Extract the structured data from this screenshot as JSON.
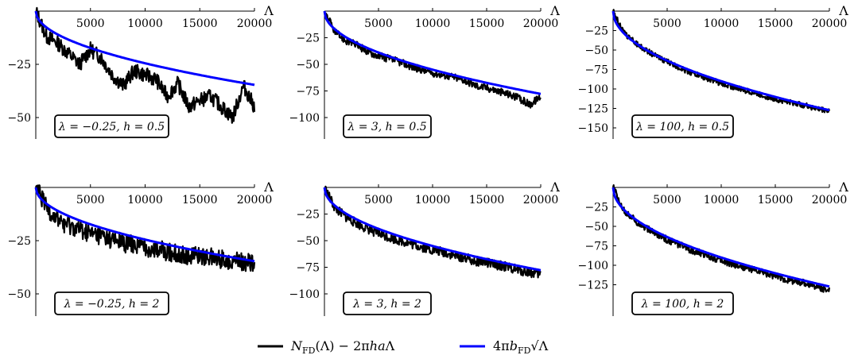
{
  "chart_data": [
    {
      "type": "line",
      "title": "",
      "xlabel": "Λ",
      "ylabel": "",
      "xlim": [
        0,
        20000
      ],
      "ylim": [
        -65,
        0
      ],
      "xticks": [
        {
          "v": 5000,
          "t": "5000"
        },
        {
          "v": 10000,
          "t": "10000"
        },
        {
          "v": 15000,
          "t": "15000"
        },
        {
          "v": 20000,
          "t": "20000"
        }
      ],
      "yticks": [
        {
          "v": -25,
          "t": "−25"
        },
        {
          "v": -50,
          "t": "−50"
        }
      ],
      "annotation": {
        "lambda": "λ = −0.25,",
        "h": "h = 0.5"
      },
      "series": [
        {
          "key": "nfd",
          "x": [
            0,
            1000,
            2000,
            3000,
            4000,
            5000,
            6000,
            7000,
            8000,
            9000,
            10000,
            11000,
            12000,
            13000,
            14000,
            15000,
            16000,
            17000,
            18000,
            19000,
            20000
          ],
          "y": [
            0,
            -12,
            -15,
            -20,
            -25,
            -18,
            -22,
            -30,
            -35,
            -28,
            -30,
            -32,
            -40,
            -34,
            -45,
            -42,
            -40,
            -45,
            -50,
            -35,
            -45
          ]
        },
        {
          "key": "fit",
          "coef": -0.245
        }
      ]
    },
    {
      "type": "line",
      "title": "",
      "xlabel": "Λ",
      "ylabel": "",
      "xlim": [
        0,
        20000
      ],
      "ylim": [
        -110,
        0
      ],
      "xticks": [
        {
          "v": 5000,
          "t": "5000"
        },
        {
          "v": 10000,
          "t": "10000"
        },
        {
          "v": 15000,
          "t": "15000"
        },
        {
          "v": 20000,
          "t": "20000"
        }
      ],
      "yticks": [
        {
          "v": -25,
          "t": "−25"
        },
        {
          "v": -50,
          "t": "−50"
        },
        {
          "v": -75,
          "t": "−75"
        },
        {
          "v": -100,
          "t": "−100"
        }
      ],
      "annotation": {
        "lambda": "λ = 3,",
        "h": "h = 0.5"
      },
      "series": [
        {
          "key": "nfd",
          "x": [
            0,
            1000,
            2000,
            3000,
            4000,
            5000,
            6000,
            7000,
            8000,
            9000,
            10000,
            11000,
            12000,
            13000,
            14000,
            15000,
            16000,
            17000,
            18000,
            19000,
            20000
          ],
          "y": [
            0,
            -20,
            -28,
            -32,
            -38,
            -42,
            -45,
            -48,
            -52,
            -55,
            -58,
            -60,
            -62,
            -65,
            -70,
            -72,
            -75,
            -78,
            -82,
            -88,
            -80
          ]
        },
        {
          "key": "fit",
          "coef": -0.55
        }
      ]
    },
    {
      "type": "line",
      "title": "",
      "xlabel": "Λ",
      "ylabel": "",
      "xlim": [
        0,
        20000
      ],
      "ylim": [
        -150,
        0
      ],
      "xticks": [
        {
          "v": 5000,
          "t": "5000"
        },
        {
          "v": 10000,
          "t": "10000"
        },
        {
          "v": 15000,
          "t": "15000"
        },
        {
          "v": 20000,
          "t": "20000"
        }
      ],
      "yticks": [
        {
          "v": -25,
          "t": "−25"
        },
        {
          "v": -50,
          "t": "−50"
        },
        {
          "v": -75,
          "t": "−75"
        },
        {
          "v": -100,
          "t": "−100"
        },
        {
          "v": -125,
          "t": "−125"
        },
        {
          "v": -150,
          "t": "−150"
        }
      ],
      "annotation": {
        "lambda": "λ = 100,",
        "h": "h = 0.5"
      },
      "series": [
        {
          "key": "nfd",
          "x": [
            0,
            1000,
            2000,
            3000,
            4000,
            5000,
            6000,
            7000,
            8000,
            9000,
            10000,
            11000,
            12000,
            13000,
            14000,
            15000,
            16000,
            17000,
            18000,
            19000,
            20000
          ],
          "y": [
            0,
            -28,
            -40,
            -50,
            -58,
            -65,
            -72,
            -78,
            -83,
            -88,
            -93,
            -97,
            -101,
            -105,
            -109,
            -113,
            -116,
            -119,
            -122,
            -126,
            -128
          ]
        },
        {
          "key": "fit",
          "coef": -0.9
        }
      ]
    },
    {
      "type": "line",
      "title": "",
      "xlabel": "Λ",
      "ylabel": "",
      "xlim": [
        0,
        20000
      ],
      "ylim": [
        -65,
        0
      ],
      "xticks": [
        {
          "v": 5000,
          "t": "5000"
        },
        {
          "v": 10000,
          "t": "10000"
        },
        {
          "v": 15000,
          "t": "15000"
        },
        {
          "v": 20000,
          "t": "20000"
        }
      ],
      "yticks": [
        {
          "v": -25,
          "t": "−25"
        },
        {
          "v": -50,
          "t": "−50"
        }
      ],
      "annotation": {
        "lambda": "λ = −0.25,",
        "h": "h = 2"
      },
      "series": [
        {
          "key": "nfd",
          "x": [
            0,
            1000,
            2000,
            3000,
            4000,
            5000,
            6000,
            7000,
            8000,
            9000,
            10000,
            11000,
            12000,
            13000,
            14000,
            15000,
            16000,
            17000,
            18000,
            19000,
            20000
          ],
          "y": [
            0,
            -10,
            -15,
            -18,
            -20,
            -22,
            -23,
            -25,
            -26,
            -27,
            -28,
            -29,
            -30,
            -31,
            -32,
            -32,
            -33,
            -34,
            -34,
            -35,
            -36
          ]
        },
        {
          "key": "fit",
          "coef": -0.245
        }
      ]
    },
    {
      "type": "line",
      "title": "",
      "xlabel": "Λ",
      "ylabel": "",
      "xlim": [
        0,
        20000
      ],
      "ylim": [
        -100,
        0
      ],
      "xticks": [
        {
          "v": 5000,
          "t": "5000"
        },
        {
          "v": 10000,
          "t": "10000"
        },
        {
          "v": 15000,
          "t": "15000"
        },
        {
          "v": 20000,
          "t": "20000"
        }
      ],
      "yticks": [
        {
          "v": -25,
          "t": "−25"
        },
        {
          "v": -50,
          "t": "−50"
        },
        {
          "v": -75,
          "t": "−75"
        },
        {
          "v": -100,
          "t": "−100"
        }
      ],
      "annotation": {
        "lambda": "λ = 3,",
        "h": "h = 2"
      },
      "series": [
        {
          "key": "nfd",
          "x": [
            0,
            1000,
            2000,
            3000,
            4000,
            5000,
            6000,
            7000,
            8000,
            9000,
            10000,
            11000,
            12000,
            13000,
            14000,
            15000,
            16000,
            17000,
            18000,
            19000,
            20000
          ],
          "y": [
            0,
            -20,
            -28,
            -34,
            -39,
            -43,
            -47,
            -50,
            -53,
            -56,
            -59,
            -61,
            -64,
            -66,
            -69,
            -71,
            -73,
            -75,
            -78,
            -80,
            -82
          ]
        },
        {
          "key": "fit",
          "coef": -0.55
        }
      ]
    },
    {
      "type": "line",
      "title": "",
      "xlabel": "Λ",
      "ylabel": "",
      "xlim": [
        0,
        20000
      ],
      "ylim": [
        -140,
        0
      ],
      "xticks": [
        {
          "v": 5000,
          "t": "5000"
        },
        {
          "v": 10000,
          "t": "10000"
        },
        {
          "v": 15000,
          "t": "15000"
        },
        {
          "v": 20000,
          "t": "20000"
        }
      ],
      "yticks": [
        {
          "v": -25,
          "t": "−25"
        },
        {
          "v": -50,
          "t": "−50"
        },
        {
          "v": -75,
          "t": "−75"
        },
        {
          "v": -100,
          "t": "−100"
        },
        {
          "v": -125,
          "t": "−125"
        }
      ],
      "annotation": {
        "lambda": "λ = 100,",
        "h": "h = 2"
      },
      "series": [
        {
          "key": "nfd",
          "x": [
            0,
            1000,
            2000,
            3000,
            4000,
            5000,
            6000,
            7000,
            8000,
            9000,
            10000,
            11000,
            12000,
            13000,
            14000,
            15000,
            16000,
            17000,
            18000,
            19000,
            20000
          ],
          "y": [
            0,
            -30,
            -42,
            -52,
            -60,
            -67,
            -73,
            -79,
            -84,
            -89,
            -94,
            -98,
            -102,
            -106,
            -110,
            -114,
            -118,
            -121,
            -124,
            -128,
            -132
          ]
        },
        {
          "key": "fit",
          "coef": -0.9
        }
      ]
    }
  ],
  "legend": {
    "items": [
      {
        "label": "N_FD(Λ) − 2π h a Λ",
        "color": "#000000"
      },
      {
        "label": "4π b_FD √Λ",
        "color": "#0000ff"
      }
    ]
  },
  "colors": {
    "data": "#000000",
    "fit": "#0000ff",
    "axis": "#000000"
  }
}
